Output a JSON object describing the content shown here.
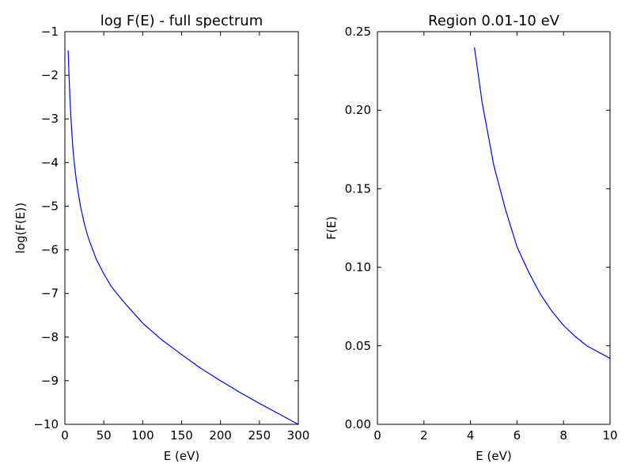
{
  "chart_data": [
    {
      "type": "line",
      "title": "log F(E) - full spectrum",
      "xlabel": "E (eV)",
      "ylabel": "log(F(E))",
      "xlim": [
        0,
        300
      ],
      "ylim": [
        -10,
        -1
      ],
      "xticks": [
        0,
        50,
        100,
        150,
        200,
        250,
        300
      ],
      "yticks": [
        -10,
        -9,
        -8,
        -7,
        -6,
        -5,
        -4,
        -3,
        -2,
        -1
      ],
      "grid": false,
      "series": [
        {
          "color": "#0000ff",
          "x": [
            4.2,
            5,
            6,
            7,
            8,
            10,
            12,
            15,
            20,
            25,
            30,
            40,
            50,
            60,
            75,
            100,
            125,
            150,
            175,
            200,
            225,
            250,
            275,
            300
          ],
          "y": [
            -1.43,
            -1.85,
            -2.3,
            -2.7,
            -3.05,
            -3.6,
            -4.0,
            -4.45,
            -5.0,
            -5.4,
            -5.72,
            -6.2,
            -6.55,
            -6.85,
            -7.18,
            -7.68,
            -8.07,
            -8.4,
            -8.72,
            -9.0,
            -9.27,
            -9.52,
            -9.76,
            -10.0
          ]
        }
      ]
    },
    {
      "type": "line",
      "title": "Region 0.01-10 eV",
      "xlabel": "E (eV)",
      "ylabel": "F(E)",
      "xlim": [
        0,
        10
      ],
      "ylim": [
        0,
        0.25
      ],
      "xticks": [
        0,
        2,
        4,
        6,
        8,
        10
      ],
      "yticks": [
        0.0,
        0.05,
        0.1,
        0.15,
        0.2,
        0.25
      ],
      "ytick_labels": [
        "0.00",
        "0.05",
        "0.10",
        "0.15",
        "0.20",
        "0.25"
      ],
      "grid": false,
      "series": [
        {
          "color": "#0000ff",
          "x": [
            4.17,
            4.5,
            5.0,
            5.5,
            6.0,
            6.5,
            7.0,
            7.5,
            8.0,
            8.5,
            9.0,
            9.5,
            10.0
          ],
          "y": [
            0.24,
            0.205,
            0.165,
            0.137,
            0.113,
            0.097,
            0.083,
            0.072,
            0.063,
            0.056,
            0.05,
            0.046,
            0.042
          ]
        }
      ]
    }
  ]
}
